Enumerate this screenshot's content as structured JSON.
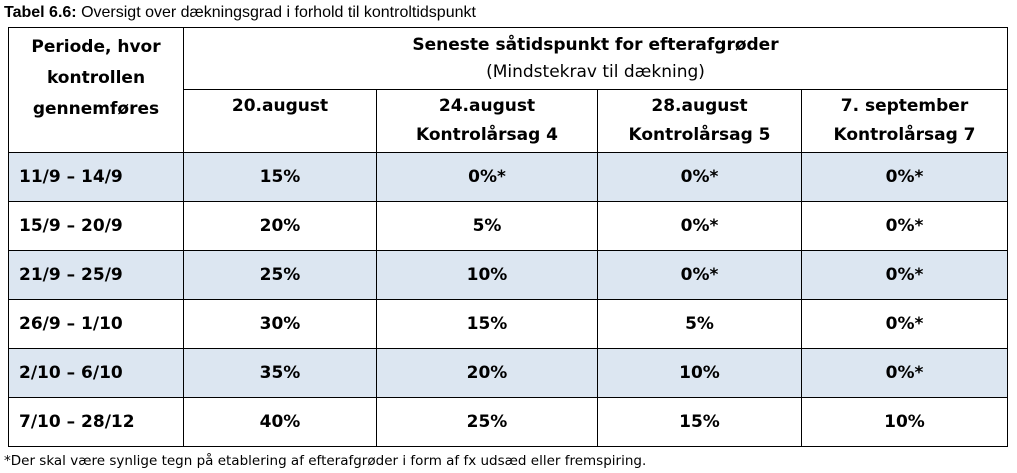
{
  "caption": {
    "label": "Tabel 6.6:",
    "text": " Oversigt over dækningsgrad i forhold til kontroltidspunkt"
  },
  "table": {
    "row_header_lines": [
      "Periode, hvor",
      "kontrollen",
      "gennemføres"
    ],
    "group_header": "Seneste såtidspunkt for efterafgrøder",
    "group_subheader": "(Mindstekrav til dækning)",
    "columns": [
      {
        "line1": "20.august",
        "line2": ""
      },
      {
        "line1": "24.august",
        "line2": "Kontrolårsag 4"
      },
      {
        "line1": "28.august",
        "line2": "Kontrolårsag 5"
      },
      {
        "line1": "7. september",
        "line2": "Kontrolårsag 7"
      }
    ],
    "rows": [
      {
        "period": "11/9 – 14/9",
        "values": [
          "15%",
          "0%*",
          "0%*",
          "0%*"
        ]
      },
      {
        "period": "15/9 – 20/9",
        "values": [
          "20%",
          "5%",
          "0%*",
          "0%*"
        ]
      },
      {
        "period": "21/9 – 25/9",
        "values": [
          "25%",
          "10%",
          "0%*",
          "0%*"
        ]
      },
      {
        "period": "26/9 – 1/10",
        "values": [
          "30%",
          "15%",
          "5%",
          "0%*"
        ]
      },
      {
        "period": "2/10 – 6/10",
        "values": [
          "35%",
          "20%",
          "10%",
          "0%*"
        ]
      },
      {
        "period": "7/10 – 28/12",
        "values": [
          "40%",
          "25%",
          "15%",
          "10%"
        ]
      }
    ],
    "shade_color": "#dce6f1"
  },
  "footnote": "*Der skal være synlige tegn på etablering af efterafgrøder i form af fx udsæd eller fremspiring."
}
